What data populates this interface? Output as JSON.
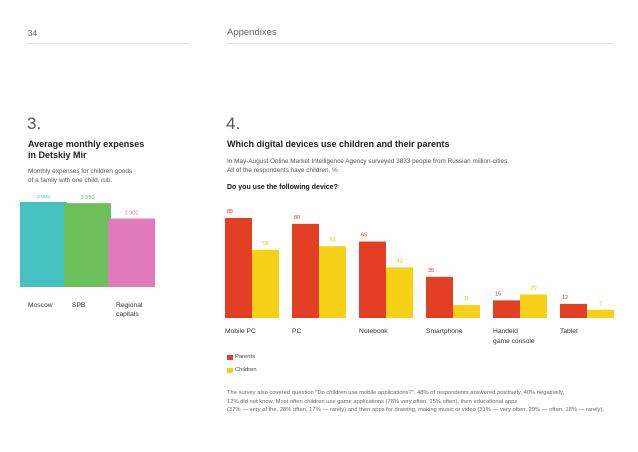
{
  "header": {
    "page_number": "34",
    "section": "Appendixes"
  },
  "left": {
    "number": "3.",
    "title": [
      "Average monthly expenses",
      "in Detskiy Mir"
    ],
    "description": [
      "Monthly expenses for children goods",
      "of a family with one child, rub."
    ]
  },
  "right": {
    "number": "4.",
    "title": "Which digital devices use children and their parents",
    "description": [
      "In May-August Online Market Intelligence Agency surveyed 3833 people from Russian million-cities.",
      "All of the respondents have children, %"
    ],
    "question": "Do you use the following device?",
    "footnote": [
      "The survey also covered question \"Do children use mobile applications?\". 48% of respondents answered positively, 40% negatively,",
      "12% did not know. Most often children use game applications (78% very often, 15% often), then educational apps",
      "(37% — very of the, 28% often, 17% — rarely) and then apps for drawing, making music or video (31% — very often, 29% — often, 18% — rarely)."
    ]
  },
  "colors": {
    "moscow": "#45c1bf",
    "spb": "#6cbf5b",
    "regional": "#de7bb8",
    "parents": "#e33f25",
    "children": "#f7d117"
  },
  "chart_data": [
    {
      "type": "bar",
      "categories": [
        "Moscow",
        "SPB",
        "Regional capitals"
      ],
      "category_lines": [
        [
          "Moscow"
        ],
        [
          "SPB"
        ],
        [
          "Regional",
          "capitals"
        ]
      ],
      "values": [
        3600,
        3550,
        2900
      ],
      "value_labels": [
        "3 600",
        "3 550",
        "2 900"
      ],
      "ylim": [
        0,
        3600
      ],
      "grid": false
    },
    {
      "type": "bar",
      "categories": [
        "Mobile PC",
        "PC",
        "Notebook",
        "Smartphone",
        "Handeld game console",
        "Tablet"
      ],
      "category_lines": [
        [
          "Mobile PC"
        ],
        [
          "PC"
        ],
        [
          "Notebook"
        ],
        [
          "Smartphone"
        ],
        [
          "Handeld",
          "game console"
        ],
        [
          "Tablet"
        ]
      ],
      "series": [
        {
          "name": "Parents",
          "values": [
            85,
            80,
            65,
            35,
            15,
            12
          ]
        },
        {
          "name": "Children",
          "values": [
            58,
            61,
            43,
            11,
            20,
            7
          ]
        }
      ],
      "ylim": [
        0,
        85
      ],
      "grid": false,
      "legend": "bottom-left"
    }
  ]
}
